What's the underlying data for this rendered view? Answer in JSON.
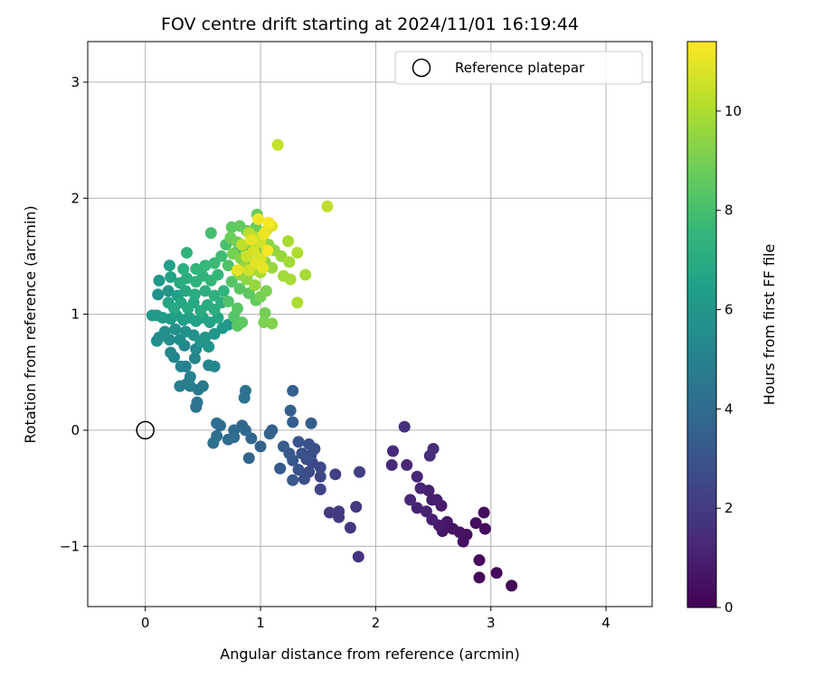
{
  "chart_data": {
    "type": "scatter",
    "title": "FOV centre drift starting at 2024/11/01 16:19:44",
    "xlabel": "Angular distance from reference (arcmin)",
    "ylabel": "Rotation from reference (arcmin)",
    "xlim": [
      -0.5,
      4.4
    ],
    "ylim": [
      -1.52,
      3.35
    ],
    "xticks": [
      0,
      1,
      2,
      3,
      4
    ],
    "xtick_labels": [
      "0",
      "1",
      "2",
      "3",
      "4"
    ],
    "yticks": [
      -1,
      0,
      1,
      2,
      3
    ],
    "ytick_labels": [
      "−1",
      "0",
      "1",
      "2",
      "3"
    ],
    "grid": true,
    "legend": {
      "position": "top-right",
      "entries": [
        {
          "label": "Reference platepar",
          "marker": "open-circle"
        }
      ]
    },
    "reference_point": {
      "x": 0,
      "y": 0
    },
    "colorbar": {
      "label": "Hours from first FF file",
      "colormap": "viridis",
      "range": [
        0,
        11.4
      ],
      "ticks": [
        0,
        2,
        4,
        6,
        8,
        10
      ],
      "tick_labels": [
        "0",
        "2",
        "4",
        "6",
        "8",
        "10"
      ]
    },
    "points": [
      {
        "x": 3.18,
        "y": -1.34,
        "c": 0.1
      },
      {
        "x": 3.05,
        "y": -1.23,
        "c": 0.2
      },
      {
        "x": 2.9,
        "y": -1.27,
        "c": 0.2
      },
      {
        "x": 2.9,
        "y": -1.12,
        "c": 0.3
      },
      {
        "x": 2.95,
        "y": -0.85,
        "c": 0.3
      },
      {
        "x": 2.94,
        "y": -0.71,
        "c": 0.4
      },
      {
        "x": 2.87,
        "y": -0.8,
        "c": 0.4
      },
      {
        "x": 2.79,
        "y": -0.9,
        "c": 0.5
      },
      {
        "x": 2.76,
        "y": -0.96,
        "c": 0.5
      },
      {
        "x": 2.73,
        "y": -0.88,
        "c": 0.6
      },
      {
        "x": 2.67,
        "y": -0.85,
        "c": 0.6
      },
      {
        "x": 2.62,
        "y": -0.79,
        "c": 0.7
      },
      {
        "x": 2.58,
        "y": -0.87,
        "c": 0.7
      },
      {
        "x": 2.55,
        "y": -0.82,
        "c": 0.8
      },
      {
        "x": 2.57,
        "y": -0.65,
        "c": 0.8
      },
      {
        "x": 2.53,
        "y": -0.6,
        "c": 0.9
      },
      {
        "x": 2.49,
        "y": -0.6,
        "c": 0.9
      },
      {
        "x": 2.49,
        "y": -0.77,
        "c": 1.0
      },
      {
        "x": 2.46,
        "y": -0.52,
        "c": 1.0
      },
      {
        "x": 2.44,
        "y": -0.7,
        "c": 1.1
      },
      {
        "x": 2.36,
        "y": -0.67,
        "c": 1.1
      },
      {
        "x": 2.39,
        "y": -0.5,
        "c": 1.2
      },
      {
        "x": 2.36,
        "y": -0.4,
        "c": 1.2
      },
      {
        "x": 2.3,
        "y": -0.6,
        "c": 1.3
      },
      {
        "x": 2.27,
        "y": -0.3,
        "c": 1.3
      },
      {
        "x": 2.14,
        "y": -0.3,
        "c": 1.4
      },
      {
        "x": 2.15,
        "y": -0.18,
        "c": 1.4
      },
      {
        "x": 2.47,
        "y": -0.22,
        "c": 1.5
      },
      {
        "x": 2.5,
        "y": -0.16,
        "c": 1.5
      },
      {
        "x": 2.25,
        "y": 0.03,
        "c": 1.6
      },
      {
        "x": 1.85,
        "y": -1.09,
        "c": 1.7
      },
      {
        "x": 1.78,
        "y": -0.84,
        "c": 1.8
      },
      {
        "x": 1.83,
        "y": -0.66,
        "c": 1.8
      },
      {
        "x": 1.68,
        "y": -0.75,
        "c": 1.9
      },
      {
        "x": 1.68,
        "y": -0.7,
        "c": 2.0
      },
      {
        "x": 1.6,
        "y": -0.71,
        "c": 2.0
      },
      {
        "x": 1.86,
        "y": -0.36,
        "c": 2.1
      },
      {
        "x": 1.65,
        "y": -0.38,
        "c": 2.2
      },
      {
        "x": 1.52,
        "y": -0.51,
        "c": 2.3
      },
      {
        "x": 1.52,
        "y": -0.4,
        "c": 2.4
      },
      {
        "x": 1.52,
        "y": -0.32,
        "c": 2.5
      },
      {
        "x": 1.45,
        "y": -0.28,
        "c": 2.5
      },
      {
        "x": 1.42,
        "y": -0.36,
        "c": 2.6
      },
      {
        "x": 1.38,
        "y": -0.42,
        "c": 2.7
      },
      {
        "x": 1.4,
        "y": -0.25,
        "c": 2.7
      },
      {
        "x": 1.47,
        "y": -0.16,
        "c": 2.8
      },
      {
        "x": 1.44,
        "y": -0.21,
        "c": 2.8
      },
      {
        "x": 1.42,
        "y": -0.12,
        "c": 2.9
      },
      {
        "x": 1.36,
        "y": -0.2,
        "c": 2.9
      },
      {
        "x": 1.33,
        "y": -0.1,
        "c": 3.0
      },
      {
        "x": 1.33,
        "y": -0.34,
        "c": 3.0
      },
      {
        "x": 1.28,
        "y": -0.43,
        "c": 3.1
      },
      {
        "x": 1.28,
        "y": -0.26,
        "c": 3.1
      },
      {
        "x": 1.25,
        "y": -0.2,
        "c": 3.2
      },
      {
        "x": 1.17,
        "y": -0.33,
        "c": 3.2
      },
      {
        "x": 1.2,
        "y": -0.14,
        "c": 3.3
      },
      {
        "x": 1.44,
        "y": 0.06,
        "c": 3.3
      },
      {
        "x": 1.28,
        "y": 0.07,
        "c": 3.4
      },
      {
        "x": 1.26,
        "y": 0.17,
        "c": 3.4
      },
      {
        "x": 1.28,
        "y": 0.34,
        "c": 3.5
      },
      {
        "x": 1.1,
        "y": 0.0,
        "c": 3.5
      },
      {
        "x": 1.08,
        "y": -0.03,
        "c": 3.6
      },
      {
        "x": 1.0,
        "y": -0.14,
        "c": 3.6
      },
      {
        "x": 0.92,
        "y": -0.07,
        "c": 3.7
      },
      {
        "x": 0.9,
        "y": -0.24,
        "c": 3.7
      },
      {
        "x": 0.87,
        "y": 0.0,
        "c": 3.8
      },
      {
        "x": 0.84,
        "y": 0.04,
        "c": 3.8
      },
      {
        "x": 0.77,
        "y": 0.0,
        "c": 3.9
      },
      {
        "x": 0.72,
        "y": -0.08,
        "c": 3.9
      },
      {
        "x": 0.77,
        "y": -0.06,
        "c": 4.0
      },
      {
        "x": 0.65,
        "y": 0.04,
        "c": 4.0
      },
      {
        "x": 0.62,
        "y": 0.06,
        "c": 4.1
      },
      {
        "x": 0.62,
        "y": -0.05,
        "c": 4.1
      },
      {
        "x": 0.59,
        "y": -0.11,
        "c": 4.2
      },
      {
        "x": 0.86,
        "y": 0.28,
        "c": 4.3
      },
      {
        "x": 0.87,
        "y": 0.34,
        "c": 4.3
      },
      {
        "x": 0.44,
        "y": 0.2,
        "c": 4.4
      },
      {
        "x": 0.45,
        "y": 0.24,
        "c": 4.5
      },
      {
        "x": 0.46,
        "y": 0.35,
        "c": 4.6
      },
      {
        "x": 0.5,
        "y": 0.38,
        "c": 4.7
      },
      {
        "x": 0.39,
        "y": 0.38,
        "c": 4.8
      },
      {
        "x": 0.3,
        "y": 0.38,
        "c": 4.8
      },
      {
        "x": 0.36,
        "y": 0.4,
        "c": 4.9
      },
      {
        "x": 0.39,
        "y": 0.46,
        "c": 5.0
      },
      {
        "x": 0.35,
        "y": 0.55,
        "c": 5.0
      },
      {
        "x": 0.31,
        "y": 0.55,
        "c": 5.1
      },
      {
        "x": 0.55,
        "y": 0.56,
        "c": 5.1
      },
      {
        "x": 0.6,
        "y": 0.55,
        "c": 5.2
      },
      {
        "x": 0.25,
        "y": 0.63,
        "c": 5.2
      },
      {
        "x": 0.22,
        "y": 0.67,
        "c": 5.3
      },
      {
        "x": 0.43,
        "y": 0.62,
        "c": 5.3
      },
      {
        "x": 0.44,
        "y": 0.7,
        "c": 5.4
      },
      {
        "x": 0.34,
        "y": 0.73,
        "c": 5.4
      },
      {
        "x": 0.3,
        "y": 0.78,
        "c": 5.5
      },
      {
        "x": 0.21,
        "y": 0.78,
        "c": 5.5
      },
      {
        "x": 0.1,
        "y": 0.77,
        "c": 5.6
      },
      {
        "x": 0.12,
        "y": 0.8,
        "c": 5.6
      },
      {
        "x": 0.17,
        "y": 0.85,
        "c": 5.7
      },
      {
        "x": 0.26,
        "y": 0.87,
        "c": 5.7
      },
      {
        "x": 0.35,
        "y": 0.85,
        "c": 5.8
      },
      {
        "x": 0.42,
        "y": 0.82,
        "c": 5.8
      },
      {
        "x": 0.48,
        "y": 0.76,
        "c": 5.9
      },
      {
        "x": 0.55,
        "y": 0.72,
        "c": 5.9
      },
      {
        "x": 0.52,
        "y": 0.8,
        "c": 6.0
      },
      {
        "x": 0.6,
        "y": 0.83,
        "c": 6.0
      },
      {
        "x": 0.67,
        "y": 0.88,
        "c": 6.1
      },
      {
        "x": 0.72,
        "y": 0.91,
        "c": 6.1
      },
      {
        "x": 0.06,
        "y": 0.99,
        "c": 6.2
      },
      {
        "x": 0.1,
        "y": 0.99,
        "c": 6.2
      },
      {
        "x": 0.15,
        "y": 0.97,
        "c": 6.3
      },
      {
        "x": 0.22,
        "y": 0.96,
        "c": 6.3
      },
      {
        "x": 0.27,
        "y": 0.99,
        "c": 6.4
      },
      {
        "x": 0.33,
        "y": 0.95,
        "c": 6.4
      },
      {
        "x": 0.38,
        "y": 0.97,
        "c": 6.5
      },
      {
        "x": 0.44,
        "y": 0.94,
        "c": 6.5
      },
      {
        "x": 0.5,
        "y": 0.97,
        "c": 6.6
      },
      {
        "x": 0.56,
        "y": 0.93,
        "c": 6.6
      },
      {
        "x": 0.63,
        "y": 0.97,
        "c": 6.7
      },
      {
        "x": 0.2,
        "y": 1.1,
        "c": 6.7
      },
      {
        "x": 0.25,
        "y": 1.05,
        "c": 6.8
      },
      {
        "x": 0.31,
        "y": 1.1,
        "c": 6.8
      },
      {
        "x": 0.37,
        "y": 1.05,
        "c": 6.9
      },
      {
        "x": 0.42,
        "y": 1.1,
        "c": 6.9
      },
      {
        "x": 0.48,
        "y": 1.03,
        "c": 7.0
      },
      {
        "x": 0.54,
        "y": 1.08,
        "c": 7.0
      },
      {
        "x": 0.6,
        "y": 1.04,
        "c": 7.1
      },
      {
        "x": 0.66,
        "y": 1.1,
        "c": 7.1
      },
      {
        "x": 0.11,
        "y": 1.17,
        "c": 5.8
      },
      {
        "x": 0.2,
        "y": 1.2,
        "c": 6.0
      },
      {
        "x": 0.28,
        "y": 1.16,
        "c": 6.4
      },
      {
        "x": 0.35,
        "y": 1.2,
        "c": 6.8
      },
      {
        "x": 0.43,
        "y": 1.17,
        "c": 7.0
      },
      {
        "x": 0.52,
        "y": 1.2,
        "c": 7.2
      },
      {
        "x": 0.6,
        "y": 1.16,
        "c": 7.3
      },
      {
        "x": 0.68,
        "y": 1.2,
        "c": 7.4
      },
      {
        "x": 0.12,
        "y": 1.29,
        "c": 6.1
      },
      {
        "x": 0.22,
        "y": 1.32,
        "c": 6.6
      },
      {
        "x": 0.3,
        "y": 1.27,
        "c": 6.9
      },
      {
        "x": 0.36,
        "y": 1.31,
        "c": 7.1
      },
      {
        "x": 0.44,
        "y": 1.28,
        "c": 7.3
      },
      {
        "x": 0.5,
        "y": 1.33,
        "c": 7.4
      },
      {
        "x": 0.57,
        "y": 1.29,
        "c": 7.5
      },
      {
        "x": 0.63,
        "y": 1.34,
        "c": 7.6
      },
      {
        "x": 0.21,
        "y": 1.42,
        "c": 6.5
      },
      {
        "x": 0.33,
        "y": 1.39,
        "c": 7.2
      },
      {
        "x": 0.44,
        "y": 1.39,
        "c": 7.5
      },
      {
        "x": 0.52,
        "y": 1.42,
        "c": 7.6
      },
      {
        "x": 0.6,
        "y": 1.44,
        "c": 7.7
      },
      {
        "x": 0.66,
        "y": 1.5,
        "c": 7.8
      },
      {
        "x": 0.36,
        "y": 1.53,
        "c": 7.4
      },
      {
        "x": 0.57,
        "y": 1.7,
        "c": 8.0
      },
      {
        "x": 0.7,
        "y": 1.6,
        "c": 8.1
      },
      {
        "x": 0.78,
        "y": 1.53,
        "c": 8.2
      },
      {
        "x": 0.85,
        "y": 1.47,
        "c": 8.3
      },
      {
        "x": 0.72,
        "y": 1.42,
        "c": 8.2
      },
      {
        "x": 0.8,
        "y": 1.37,
        "c": 8.3
      },
      {
        "x": 0.88,
        "y": 1.32,
        "c": 8.4
      },
      {
        "x": 0.75,
        "y": 1.28,
        "c": 8.3
      },
      {
        "x": 0.82,
        "y": 1.22,
        "c": 8.4
      },
      {
        "x": 0.9,
        "y": 1.18,
        "c": 8.5
      },
      {
        "x": 0.96,
        "y": 1.12,
        "c": 8.6
      },
      {
        "x": 0.72,
        "y": 1.11,
        "c": 8.2
      },
      {
        "x": 0.8,
        "y": 1.05,
        "c": 8.4
      },
      {
        "x": 0.77,
        "y": 0.98,
        "c": 8.3
      },
      {
        "x": 0.84,
        "y": 0.93,
        "c": 8.5
      },
      {
        "x": 0.8,
        "y": 0.9,
        "c": 8.4
      },
      {
        "x": 1.04,
        "y": 1.01,
        "c": 9.0
      },
      {
        "x": 1.03,
        "y": 0.93,
        "c": 9.1
      },
      {
        "x": 1.1,
        "y": 0.92,
        "c": 9.2
      },
      {
        "x": 1.0,
        "y": 1.15,
        "c": 9.0
      },
      {
        "x": 1.05,
        "y": 1.2,
        "c": 9.1
      },
      {
        "x": 0.75,
        "y": 1.75,
        "c": 8.5
      },
      {
        "x": 0.82,
        "y": 1.76,
        "c": 8.6
      },
      {
        "x": 0.88,
        "y": 1.72,
        "c": 8.7
      },
      {
        "x": 0.96,
        "y": 1.75,
        "c": 8.8
      },
      {
        "x": 0.97,
        "y": 1.86,
        "c": 8.7
      },
      {
        "x": 0.74,
        "y": 1.66,
        "c": 8.8
      },
      {
        "x": 0.8,
        "y": 1.62,
        "c": 8.9
      },
      {
        "x": 0.86,
        "y": 1.58,
        "c": 9.0
      },
      {
        "x": 0.92,
        "y": 1.6,
        "c": 9.1
      },
      {
        "x": 0.98,
        "y": 1.55,
        "c": 9.2
      },
      {
        "x": 1.02,
        "y": 1.66,
        "c": 9.3
      },
      {
        "x": 1.07,
        "y": 1.6,
        "c": 9.4
      },
      {
        "x": 1.12,
        "y": 1.55,
        "c": 9.5
      },
      {
        "x": 1.18,
        "y": 1.5,
        "c": 9.6
      },
      {
        "x": 0.76,
        "y": 1.52,
        "c": 9.0
      },
      {
        "x": 0.83,
        "y": 1.48,
        "c": 9.2
      },
      {
        "x": 0.9,
        "y": 1.45,
        "c": 9.3
      },
      {
        "x": 0.96,
        "y": 1.42,
        "c": 9.4
      },
      {
        "x": 1.04,
        "y": 1.45,
        "c": 9.5
      },
      {
        "x": 1.1,
        "y": 1.4,
        "c": 9.6
      },
      {
        "x": 0.82,
        "y": 1.34,
        "c": 9.4
      },
      {
        "x": 0.88,
        "y": 1.3,
        "c": 9.5
      },
      {
        "x": 0.95,
        "y": 1.25,
        "c": 9.6
      },
      {
        "x": 0.86,
        "y": 1.4,
        "c": 9.7
      },
      {
        "x": 0.93,
        "y": 1.38,
        "c": 9.8
      },
      {
        "x": 1.0,
        "y": 1.36,
        "c": 9.9
      },
      {
        "x": 1.2,
        "y": 1.33,
        "c": 9.8
      },
      {
        "x": 1.26,
        "y": 1.3,
        "c": 9.9
      },
      {
        "x": 1.25,
        "y": 1.45,
        "c": 9.8
      },
      {
        "x": 1.24,
        "y": 1.63,
        "c": 9.9
      },
      {
        "x": 1.32,
        "y": 1.53,
        "c": 10.0
      },
      {
        "x": 1.39,
        "y": 1.34,
        "c": 9.9
      },
      {
        "x": 1.32,
        "y": 1.1,
        "c": 10.0
      },
      {
        "x": 1.58,
        "y": 1.93,
        "c": 10.3
      },
      {
        "x": 1.15,
        "y": 2.46,
        "c": 10.4
      },
      {
        "x": 0.9,
        "y": 1.7,
        "c": 10.2
      },
      {
        "x": 0.95,
        "y": 1.66,
        "c": 10.4
      },
      {
        "x": 1.0,
        "y": 1.62,
        "c": 10.6
      },
      {
        "x": 1.05,
        "y": 1.72,
        "c": 10.7
      },
      {
        "x": 1.1,
        "y": 1.76,
        "c": 10.9
      },
      {
        "x": 0.88,
        "y": 1.5,
        "c": 10.5
      },
      {
        "x": 0.94,
        "y": 1.54,
        "c": 10.7
      },
      {
        "x": 1.0,
        "y": 1.48,
        "c": 10.8
      },
      {
        "x": 0.84,
        "y": 1.6,
        "c": 10.3
      },
      {
        "x": 0.9,
        "y": 1.38,
        "c": 10.6
      },
      {
        "x": 0.96,
        "y": 1.44,
        "c": 10.9
      },
      {
        "x": 1.02,
        "y": 1.4,
        "c": 11.0
      },
      {
        "x": 0.98,
        "y": 1.82,
        "c": 11.2
      },
      {
        "x": 1.07,
        "y": 1.79,
        "c": 11.3
      },
      {
        "x": 1.03,
        "y": 1.69,
        "c": 11.1
      },
      {
        "x": 0.92,
        "y": 1.64,
        "c": 11.0
      },
      {
        "x": 1.06,
        "y": 1.55,
        "c": 11.3
      },
      {
        "x": 0.8,
        "y": 1.38,
        "c": 11.0
      }
    ]
  }
}
